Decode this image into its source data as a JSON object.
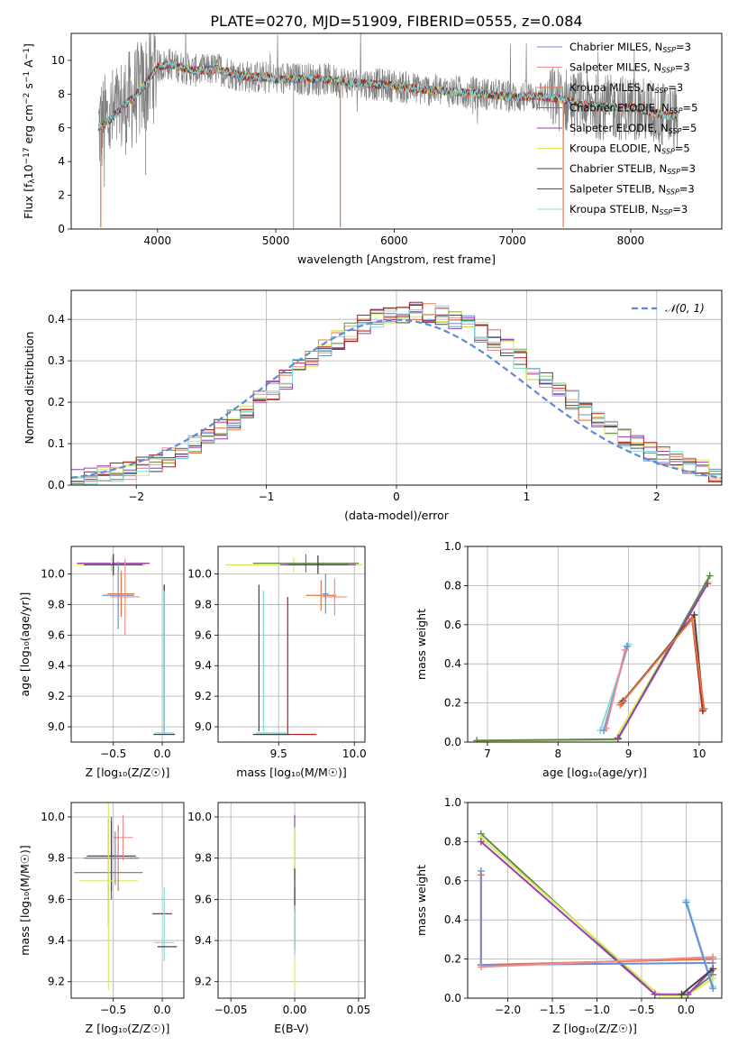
{
  "figure": {
    "title": "PLATE=0270, MJD=51909, FIBERID=0555, z=0.084"
  },
  "chart_data": [
    {
      "id": "spectrum",
      "type": "line",
      "xlabel": "wavelength [Angstrom, rest frame]",
      "ylabel_parts": [
        "Flux [f",
        "λ",
        "10",
        "−17",
        " erg cm",
        "−2",
        " s",
        "−1",
        " A",
        "−1",
        "]"
      ],
      "xlim": [
        3270,
        8770
      ],
      "ylim": [
        0,
        11.6
      ],
      "xticks": [
        4000,
        5000,
        6000,
        7000,
        8000
      ],
      "yticks": [
        0,
        2,
        4,
        6,
        8,
        10
      ],
      "grid": false,
      "legend_position": "upper-right",
      "data_continuum": {
        "x": [
          3500,
          3600,
          3700,
          3800,
          3900,
          4000,
          4100,
          4200,
          4300,
          4400,
          4500,
          4600,
          4700,
          4800,
          4900,
          5000,
          5200,
          5400,
          5600,
          5800,
          6000,
          6200,
          6400,
          6600,
          6800,
          7000,
          7200,
          7400,
          7600,
          7800,
          8000,
          8200,
          8400
        ],
        "y": [
          6.0,
          6.5,
          7.2,
          7.8,
          8.6,
          9.6,
          9.8,
          9.6,
          9.4,
          9.4,
          9.5,
          9.3,
          9.1,
          9.0,
          9.0,
          8.9,
          8.9,
          8.9,
          8.7,
          8.6,
          8.5,
          8.3,
          8.2,
          8.1,
          8.0,
          7.8,
          7.9,
          7.7,
          7.4,
          7.2,
          7.2,
          6.9,
          6.6
        ],
        "noise_level": 2.2,
        "deep_dips": [
          {
            "x": 5150,
            "y": 0
          },
          {
            "x": 3550,
            "y": 2.5
          },
          {
            "x": 3900,
            "y": 3.2
          }
        ]
      },
      "series": [
        {
          "name_parts": [
            "Chabrier MILES, N",
            "SSP",
            "=3"
          ],
          "color": "#6a8dd6"
        },
        {
          "name_parts": [
            "Salpeter MILES, N",
            "SSP",
            "=3"
          ],
          "color": "#f08b8b"
        },
        {
          "name_parts": [
            "Kroupa MILES, N",
            "SSP",
            "=3"
          ],
          "color": "#e8743b"
        },
        {
          "name_parts": [
            "Chabrier ELODIE, N",
            "SSP",
            "=5"
          ],
          "color": "#5d8a4a"
        },
        {
          "name_parts": [
            "Salpeter ELODIE, N",
            "SSP",
            "=5"
          ],
          "color": "#9a3fb0"
        },
        {
          "name_parts": [
            "Kroupa ELODIE, N",
            "SSP",
            "=5"
          ],
          "color": "#d7ec5b"
        },
        {
          "name_parts": [
            "Chabrier STELIB, N",
            "SSP",
            "=3"
          ],
          "color": "#444444"
        },
        {
          "name_parts": [
            "Salpeter STELIB, N",
            "SSP",
            "=3"
          ],
          "color": "#b22222"
        },
        {
          "name_parts": [
            "Kroupa STELIB, N",
            "SSP",
            "=3"
          ],
          "color": "#7fd9dd"
        }
      ]
    },
    {
      "id": "residuals",
      "type": "line",
      "xlabel": "(data-model)/error",
      "ylabel": "Normed distribution",
      "xlim": [
        -2.5,
        2.5
      ],
      "ylim": [
        0,
        0.47
      ],
      "xticks": [
        -2,
        -1,
        0,
        1,
        2
      ],
      "yticks": [
        0.0,
        0.1,
        0.2,
        0.3,
        0.4
      ],
      "grid": true,
      "legend_position": "upper-right",
      "gaussian_label": "𝒩(0, 1)",
      "gaussian_color": "#5b8bd8",
      "hist_bin_width": 0.1,
      "series_colors": [
        "#6a8dd6",
        "#f08b8b",
        "#e8743b",
        "#5d8a4a",
        "#9a3fb0",
        "#d7ec5b",
        "#444444",
        "#b22222",
        "#7fd9dd"
      ]
    },
    {
      "id": "age_vs_Z",
      "type": "scatter",
      "xlabel": "Z [log₁₀(Z/Z☉)]",
      "ylabel": "age  [log₁₀(age/yr)]",
      "xlim": [
        -0.93,
        0.22
      ],
      "ylim": [
        8.9,
        10.18
      ],
      "xticks": [
        -0.5,
        0.0
      ],
      "yticks": [
        9.0,
        9.2,
        9.4,
        9.6,
        9.8,
        10.0
      ],
      "grid": true,
      "errorbars": [
        {
          "color": "#5d8a4a",
          "x": -0.5,
          "y": 10.07,
          "xerr": 0.37,
          "yerr": 0.06
        },
        {
          "color": "#9a3fb0",
          "x": -0.5,
          "y": 10.07,
          "xerr": 0.37,
          "yerr": 0.05
        },
        {
          "color": "#d7ec5b",
          "x": -0.52,
          "y": 10.06,
          "xerr": 0.35,
          "yerr": 0.05
        },
        {
          "color": "#444444",
          "x": -0.5,
          "y": 10.06,
          "xerr": 0.3,
          "yerr": 0.07
        },
        {
          "color": "#e8743b",
          "x": -0.42,
          "y": 9.87,
          "xerr": 0.14,
          "yerr": 0.15
        },
        {
          "color": "#6a8dd6",
          "x": -0.45,
          "y": 9.86,
          "xerr": 0.16,
          "yerr": 0.22
        },
        {
          "color": "#f08b8b",
          "x": -0.38,
          "y": 9.85,
          "xerr": 0.15,
          "yerr": 0.25
        },
        {
          "color": "#b22222",
          "x": 0.02,
          "y": 9.45,
          "xerr": 0.0,
          "yerr": 0.48
        },
        {
          "color": "#444444",
          "x": 0.02,
          "y": 9.45,
          "xerr": 0.0,
          "yerr": 0.48
        },
        {
          "color": "#7fd9dd",
          "x": 0.02,
          "y": 9.42,
          "xerr": 0.0,
          "yerr": 0.47
        },
        {
          "color": "#444444",
          "x": 0.02,
          "y": 8.95,
          "xerr": 0.11,
          "yerr": 0.0
        },
        {
          "color": "#7fd9dd",
          "x": 0.02,
          "y": 8.96,
          "xerr": 0.1,
          "yerr": 0.0
        }
      ]
    },
    {
      "id": "age_vs_mass",
      "type": "scatter",
      "xlabel": "mass [log₁₀(M/M☉)]",
      "ylabel": "",
      "xlim": [
        9.1,
        10.07
      ],
      "ylim": [
        8.9,
        10.18
      ],
      "xticks": [
        9.5,
        10.0
      ],
      "yticks": [
        9.0,
        9.2,
        9.4,
        9.6,
        9.8,
        10.0
      ],
      "grid": true,
      "errorbars": [
        {
          "color": "#d7ec5b",
          "x": 9.6,
          "y": 10.06,
          "xerr": 0.45,
          "yerr": 0.05
        },
        {
          "color": "#5d8a4a",
          "x": 9.68,
          "y": 10.07,
          "xerr": 0.35,
          "yerr": 0.06
        },
        {
          "color": "#9a3fb0",
          "x": 9.76,
          "y": 10.06,
          "xerr": 0.25,
          "yerr": 0.06
        },
        {
          "color": "#444444",
          "x": 9.76,
          "y": 10.06,
          "xerr": 0.2,
          "yerr": 0.06
        },
        {
          "color": "#e8743b",
          "x": 9.78,
          "y": 9.86,
          "xerr": 0.1,
          "yerr": 0.1
        },
        {
          "color": "#f08b8b",
          "x": 9.87,
          "y": 9.85,
          "xerr": 0.08,
          "yerr": 0.12
        },
        {
          "color": "#6a8dd6",
          "x": 9.81,
          "y": 9.87,
          "xerr": 0.02,
          "yerr": 0.13
        },
        {
          "color": "#444444",
          "x": 9.37,
          "y": 9.45,
          "xerr": 0.0,
          "yerr": 0.48
        },
        {
          "color": "#b22222",
          "x": 9.56,
          "y": 9.4,
          "xerr": 0.0,
          "yerr": 0.45
        },
        {
          "color": "#7fd9dd",
          "x": 9.4,
          "y": 9.43,
          "xerr": 0.0,
          "yerr": 0.46
        },
        {
          "color": "#b22222",
          "x": 9.55,
          "y": 8.95,
          "xerr": 0.2,
          "yerr": 0.0
        },
        {
          "color": "#444444",
          "x": 9.45,
          "y": 8.95,
          "xerr": 0.12,
          "yerr": 0.0
        },
        {
          "color": "#7fd9dd",
          "x": 9.45,
          "y": 8.96,
          "xerr": 0.1,
          "yerr": 0.0
        }
      ]
    },
    {
      "id": "weight_vs_age",
      "type": "line",
      "xlabel": "age  [log₁₀(age/yr)]",
      "ylabel": "mass weight",
      "xlim": [
        6.72,
        10.32
      ],
      "ylim": [
        0,
        1.0
      ],
      "xticks": [
        7,
        8,
        9,
        10
      ],
      "yticks": [
        0.0,
        0.2,
        0.4,
        0.6,
        0.8,
        1.0
      ],
      "grid": true,
      "series": [
        {
          "color": "#7fd9dd",
          "x": [
            8.6,
            9.0
          ],
          "y": [
            0.06,
            0.5
          ]
        },
        {
          "color": "#6a8dd6",
          "x": [
            8.65,
            8.98
          ],
          "y": [
            0.06,
            0.49
          ]
        },
        {
          "color": "#f08b8b",
          "x": [
            8.68,
            8.95
          ],
          "y": [
            0.07,
            0.47
          ]
        },
        {
          "color": "#d7ec5b",
          "x": [
            6.85,
            8.8,
            10.13
          ],
          "y": [
            0.005,
            0.01,
            0.82
          ]
        },
        {
          "color": "#5d8a4a",
          "x": [
            6.85,
            8.85,
            10.15
          ],
          "y": [
            0.008,
            0.015,
            0.85
          ]
        },
        {
          "color": "#9a3fb0",
          "x": [
            8.85,
            10.12
          ],
          "y": [
            0.02,
            0.81
          ]
        },
        {
          "color": "#b22222",
          "x": [
            8.9,
            9.9,
            10.05
          ],
          "y": [
            0.2,
            0.63,
            0.16
          ]
        },
        {
          "color": "#444444",
          "x": [
            8.92,
            9.93,
            10.06
          ],
          "y": [
            0.21,
            0.65,
            0.17
          ]
        },
        {
          "color": "#e8743b",
          "x": [
            8.88,
            9.9,
            10.07
          ],
          "y": [
            0.19,
            0.63,
            0.17
          ]
        }
      ]
    },
    {
      "id": "mass_vs_Z",
      "type": "scatter",
      "xlabel": "Z [log₁₀(Z/Z☉)]",
      "ylabel": "mass [log₁₀(M/M☉)]",
      "xlim": [
        -0.93,
        0.22
      ],
      "ylim": [
        9.12,
        10.07
      ],
      "xticks": [
        -0.5,
        0.0
      ],
      "yticks": [
        9.2,
        9.4,
        9.6,
        9.8,
        10.0
      ],
      "grid": true,
      "errorbars": [
        {
          "color": "#9a3fb0",
          "x": -0.52,
          "y": 9.8,
          "xerr": 0.28,
          "yerr": 0.2
        },
        {
          "color": "#444444",
          "x": -0.52,
          "y": 9.81,
          "xerr": 0.25,
          "yerr": 0.17
        },
        {
          "color": "#5d8a4a",
          "x": -0.55,
          "y": 9.73,
          "xerr": 0.35,
          "yerr": 0.26
        },
        {
          "color": "#d7ec5b",
          "x": -0.55,
          "y": 9.69,
          "xerr": 0.3,
          "yerr": 0.53
        },
        {
          "color": "#f08b8b",
          "x": -0.4,
          "y": 9.9,
          "xerr": 0.1,
          "yerr": 0.11
        },
        {
          "color": "#e8743b",
          "x": -0.45,
          "y": 9.8,
          "xerr": 0.1,
          "yerr": 0.16
        },
        {
          "color": "#6a8dd6",
          "x": -0.48,
          "y": 9.8,
          "xerr": 0.05,
          "yerr": 0.13
        },
        {
          "color": "#b22222",
          "x": 0.0,
          "y": 9.53,
          "xerr": 0.1,
          "yerr": 0.0
        },
        {
          "color": "#7fd9dd",
          "x": 0.02,
          "y": 9.48,
          "xerr": 0.0,
          "yerr": 0.18
        },
        {
          "color": "#7fd9dd",
          "x": 0.02,
          "y": 9.39,
          "xerr": 0.1,
          "yerr": 0.0
        },
        {
          "color": "#444444",
          "x": 0.05,
          "y": 9.37,
          "xerr": 0.1,
          "yerr": 0.0
        }
      ]
    },
    {
      "id": "mass_vs_ebv",
      "type": "scatter",
      "xlabel": "E(B-V)",
      "ylabel": "",
      "xlim": [
        -0.06,
        0.055
      ],
      "ylim": [
        9.12,
        10.07
      ],
      "xticks": [
        -0.05,
        0.0,
        0.05
      ],
      "yticks": [
        9.2,
        9.4,
        9.6,
        9.8,
        10.0
      ],
      "grid": true,
      "errorbars": [
        {
          "color": "#9a3fb0",
          "x": 0.0,
          "y": 9.85,
          "xerr": 0.0,
          "yerr": 0.16
        },
        {
          "color": "#d7ec5b",
          "x": 0.0,
          "y": 9.55,
          "xerr": 0.0,
          "yerr": 0.4
        },
        {
          "color": "#b22222",
          "x": 0.0,
          "y": 9.6,
          "xerr": 0.0,
          "yerr": 0.06
        },
        {
          "color": "#444444",
          "x": 0.0,
          "y": 9.55,
          "xerr": 0.0,
          "yerr": 0.2
        },
        {
          "color": "#7fd9dd",
          "x": 0.0,
          "y": 9.45,
          "xerr": 0.0,
          "yerr": 0.12
        }
      ]
    },
    {
      "id": "weight_vs_Z",
      "type": "line",
      "xlabel": "Z [log₁₀(Z/Z☉)]",
      "ylabel": "mass weight",
      "xlim": [
        -2.45,
        0.4
      ],
      "ylim": [
        0,
        1.0
      ],
      "xticks": [
        -2.0,
        -1.5,
        -1.0,
        -0.5,
        0.0
      ],
      "yticks": [
        0.0,
        0.2,
        0.4,
        0.6,
        0.8,
        1.0
      ],
      "grid": true,
      "series": [
        {
          "color": "#5d8a4a",
          "x": [
            -2.3,
            -0.35,
            0.0,
            0.3
          ],
          "y": [
            0.84,
            0.02,
            0.015,
            0.12
          ]
        },
        {
          "color": "#d7ec5b",
          "x": [
            -2.3,
            -0.3,
            0.0,
            0.3
          ],
          "y": [
            0.82,
            0.015,
            0.01,
            0.1
          ]
        },
        {
          "color": "#9a3fb0",
          "x": [
            -2.3,
            -0.35,
            0.02,
            0.28
          ],
          "y": [
            0.8,
            0.02,
            0.02,
            0.14
          ]
        },
        {
          "color": "#e8743b",
          "x": [
            -2.3,
            -2.3,
            0.3
          ],
          "y": [
            0.63,
            0.17,
            0.2
          ]
        },
        {
          "color": "#6a8dd6",
          "x": [
            -2.3,
            -2.3,
            0.3
          ],
          "y": [
            0.65,
            0.17,
            0.18
          ]
        },
        {
          "color": "#f08b8b",
          "x": [
            -2.3,
            0.3
          ],
          "y": [
            0.16,
            0.21
          ]
        },
        {
          "color": "#7fd9dd",
          "x": [
            0.0,
            0.3
          ],
          "y": [
            0.5,
            0.06
          ]
        },
        {
          "color": "#6a8dd6",
          "x": [
            0.0,
            0.3
          ],
          "y": [
            0.49,
            0.05
          ]
        },
        {
          "color": "#444444",
          "x": [
            -0.05,
            0.3
          ],
          "y": [
            0.02,
            0.15
          ]
        }
      ]
    }
  ]
}
